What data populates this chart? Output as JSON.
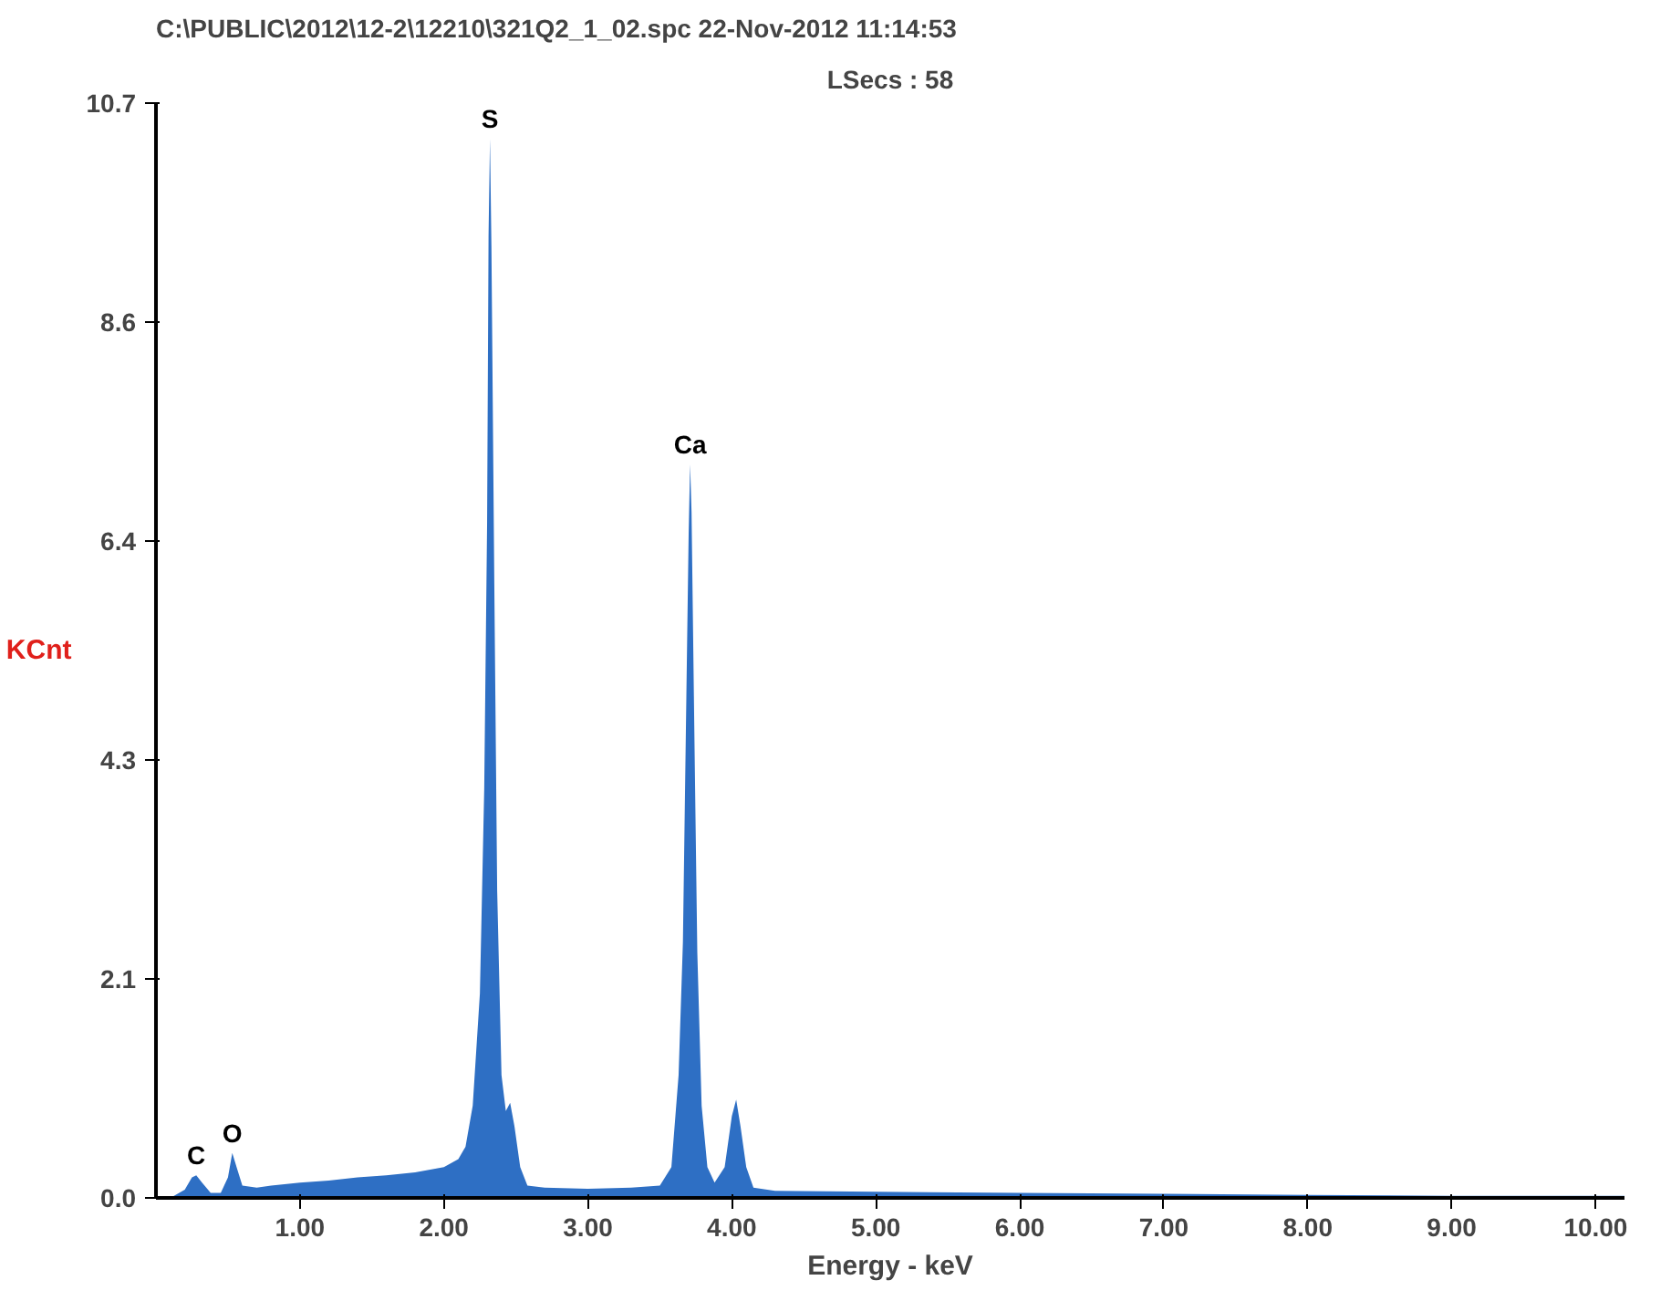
{
  "chart_data": {
    "type": "area",
    "title": "C:\\PUBLIC\\2012\\12-2\\12210\\321Q2_1_02.spc  22-Nov-2012 11:14:53",
    "subtitle": "LSecs : 58",
    "xlabel": "Energy - keV",
    "ylabel": "KCnt",
    "x": [
      0.1,
      0.2,
      0.25,
      0.28,
      0.32,
      0.38,
      0.45,
      0.5,
      0.53,
      0.56,
      0.6,
      0.7,
      0.8,
      1.0,
      1.2,
      1.4,
      1.6,
      1.8,
      2.0,
      2.1,
      2.15,
      2.2,
      2.25,
      2.28,
      2.3,
      2.31,
      2.32,
      2.33,
      2.35,
      2.37,
      2.4,
      2.43,
      2.46,
      2.49,
      2.53,
      2.58,
      2.7,
      3.0,
      3.3,
      3.5,
      3.58,
      3.63,
      3.66,
      3.68,
      3.7,
      3.71,
      3.72,
      3.74,
      3.76,
      3.79,
      3.83,
      3.88,
      3.95,
      4.0,
      4.03,
      4.06,
      4.1,
      4.15,
      4.3,
      5.0,
      6.0,
      7.0,
      8.0,
      9.0,
      10.2
    ],
    "series": [
      {
        "color": "#2e6fc4",
        "values": [
          0.0,
          0.08,
          0.2,
          0.22,
          0.15,
          0.05,
          0.05,
          0.2,
          0.44,
          0.3,
          0.12,
          0.1,
          0.12,
          0.15,
          0.17,
          0.2,
          0.22,
          0.25,
          0.3,
          0.38,
          0.5,
          0.9,
          2.0,
          4.0,
          6.6,
          9.4,
          10.35,
          9.3,
          6.0,
          3.0,
          1.2,
          0.85,
          0.93,
          0.7,
          0.3,
          0.12,
          0.1,
          0.09,
          0.1,
          0.12,
          0.3,
          1.2,
          2.5,
          4.5,
          6.5,
          7.17,
          6.7,
          4.5,
          2.4,
          0.9,
          0.3,
          0.15,
          0.3,
          0.8,
          0.96,
          0.7,
          0.3,
          0.1,
          0.07,
          0.06,
          0.05,
          0.04,
          0.03,
          0.02,
          0.02
        ]
      }
    ],
    "annotations": [
      {
        "text": "S",
        "x": 2.32,
        "y": 10.35
      },
      {
        "text": "Ca",
        "x": 3.71,
        "y": 7.17
      },
      {
        "text": "O",
        "x": 0.53,
        "y": 0.44
      },
      {
        "text": "C",
        "x": 0.28,
        "y": 0.22
      }
    ],
    "xlim": [
      0,
      10.2
    ],
    "ylim": [
      0,
      10.7
    ],
    "xticks": [
      {
        "value": 1,
        "label": "1.00"
      },
      {
        "value": 2,
        "label": "2.00"
      },
      {
        "value": 3,
        "label": "3.00"
      },
      {
        "value": 4,
        "label": "4.00"
      },
      {
        "value": 5,
        "label": "5.00"
      },
      {
        "value": 6,
        "label": "6.00"
      },
      {
        "value": 7,
        "label": "7.00"
      },
      {
        "value": 8,
        "label": "8.00"
      },
      {
        "value": 9,
        "label": "9.00"
      },
      {
        "value": 10,
        "label": "10.00"
      }
    ],
    "yticks": [
      {
        "value": 0,
        "label": "0.0"
      },
      {
        "value": 2.14,
        "label": "2.1"
      },
      {
        "value": 4.28,
        "label": "4.3"
      },
      {
        "value": 6.42,
        "label": "6.4"
      },
      {
        "value": 8.56,
        "label": "8.6"
      },
      {
        "value": 10.7,
        "label": "10.7"
      }
    ],
    "grid": false
  }
}
